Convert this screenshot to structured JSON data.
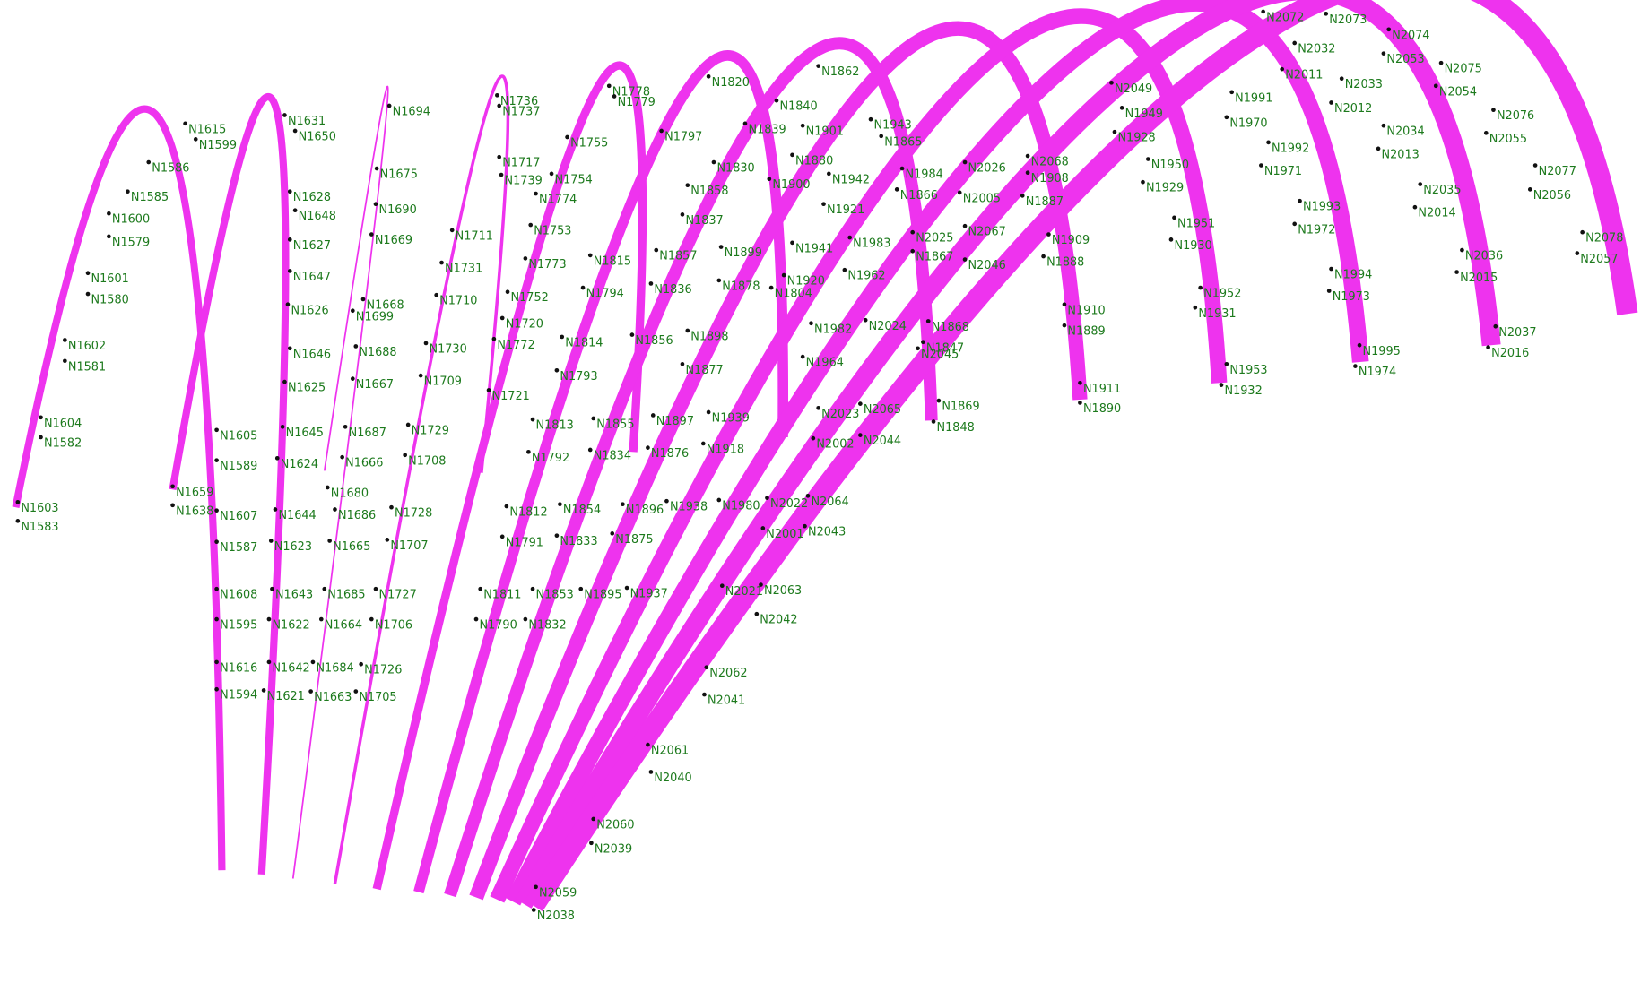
{
  "node_labels": [
    "N1603",
    "N1583",
    "N1604",
    "N1582",
    "N1602",
    "N1581",
    "N1601",
    "N1580",
    "N1600",
    "N1579",
    "N1585",
    "N1615",
    "N1599",
    "N1586",
    "N1659",
    "N1638",
    "N1605",
    "N1589",
    "N1607",
    "N1587",
    "N1608",
    "N1595",
    "N1616",
    "N1594",
    "N1631",
    "N1650",
    "N1628",
    "N1648",
    "N1627",
    "N1647",
    "N1626",
    "N1646",
    "N1625",
    "N1645",
    "N1624",
    "N1644",
    "N1623",
    "N1643",
    "N1622",
    "N1642",
    "N1621",
    "N1694",
    "N1675",
    "N1690",
    "N1669",
    "N1668",
    "N1699",
    "N1688",
    "N1667",
    "N1687",
    "N1666",
    "N1680",
    "N1686",
    "N1665",
    "N1685",
    "N1664",
    "N1684",
    "N1663",
    "N1736",
    "N1737",
    "N1717",
    "N1739",
    "N1753",
    "N1773",
    "N1752",
    "N1720",
    "N1772",
    "N1721",
    "N1711",
    "N1731",
    "N1710",
    "N1730",
    "N1709",
    "N1729",
    "N1708",
    "N1728",
    "N1707",
    "N1727",
    "N1706",
    "N1726",
    "N1705",
    "N1778",
    "N1779",
    "N1755",
    "N1754",
    "N1774",
    "N1815",
    "N1794",
    "N1814",
    "N1793",
    "N1813",
    "N1792",
    "N1812",
    "N1791",
    "N1811",
    "N1790",
    "N1820",
    "N1797",
    "N1858",
    "N1837",
    "N1857",
    "N1836",
    "N1856",
    "N1855",
    "N1834",
    "N1897",
    "N1876",
    "N1854",
    "N1833",
    "N1853",
    "N1832",
    "N1840",
    "N1839",
    "N1830",
    "N1899",
    "N1878",
    "N1898",
    "N1877",
    "N1896",
    "N1875",
    "N1895",
    "N1862",
    "N1901",
    "N1880",
    "N1900",
    "N1941",
    "N1920",
    "N1804",
    "N1939",
    "N1918",
    "N1938",
    "N1937",
    "N1942",
    "N1921",
    "N1983",
    "N1962",
    "N1982",
    "N1964",
    "N2023",
    "N2002",
    "N1980",
    "N2022",
    "N2001",
    "N2021",
    "N2063",
    "N2042",
    "N2064",
    "N2043",
    "N2065",
    "N2044",
    "N2024",
    "N2045",
    "N1943",
    "N1865",
    "N1984",
    "N1866",
    "N2025",
    "N1867",
    "N2046",
    "N1868",
    "N1847",
    "N1869",
    "N1848",
    "N2005",
    "N2026",
    "N2067",
    "N1908",
    "N1887",
    "N1909",
    "N1888",
    "N1910",
    "N1889",
    "N1911",
    "N1890",
    "N2068",
    "N2049",
    "N1949",
    "N1928",
    "N1950",
    "N1929",
    "N1951",
    "N1930",
    "N1952",
    "N1931",
    "N1953",
    "N1932",
    "N1991",
    "N1970",
    "N1992",
    "N1971",
    "N1993",
    "N1972",
    "N1994",
    "N1973",
    "N1995",
    "N1974",
    "N2033",
    "N2012",
    "N2034",
    "N2013",
    "N2035",
    "N2014",
    "N2036",
    "N2015",
    "N2037",
    "N2016",
    "N2074",
    "N2053",
    "N2075",
    "N2054",
    "N2076",
    "N2055",
    "N2077",
    "N2056",
    "N2078",
    "N2057",
    "N2072",
    "N2073",
    "N2032",
    "N2011",
    "N2062",
    "N2041",
    "N2061",
    "N2040",
    "N2060",
    "N2039",
    "N2059",
    "N2038"
  ]
}
